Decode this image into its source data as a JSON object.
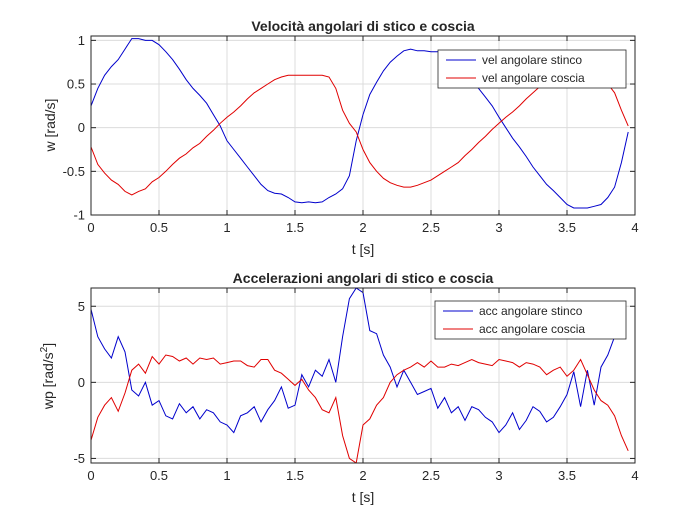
{
  "chart_data": [
    {
      "type": "line",
      "title": "Velocità angolari di stico e coscia",
      "xlabel": "t [s]",
      "ylabel": "w [rad/s]",
      "xlim": [
        0,
        4
      ],
      "ylim": [
        -1,
        1.05
      ],
      "xticks": [
        0,
        0.5,
        1,
        1.5,
        2,
        2.5,
        3,
        3.5,
        4
      ],
      "xtick_labels": [
        "0",
        "0.5",
        "1",
        "1.5",
        "2",
        "2.5",
        "3",
        "3.5",
        "4"
      ],
      "yticks": [
        -1,
        -0.5,
        0,
        0.5,
        1
      ],
      "ytick_labels": [
        "-1",
        "-0.5",
        "0",
        "0.5",
        "1"
      ],
      "grid": true,
      "legend_position": "top-right",
      "colors": {
        "stinco": "#0000cc",
        "coscia": "#e00000"
      },
      "series": [
        {
          "name": "vel angolare stinco",
          "color": "#0000cc",
          "x": [
            0,
            0.05,
            0.1,
            0.15,
            0.2,
            0.25,
            0.3,
            0.35,
            0.4,
            0.45,
            0.5,
            0.55,
            0.6,
            0.65,
            0.7,
            0.75,
            0.8,
            0.85,
            0.9,
            0.95,
            1,
            1.05,
            1.1,
            1.15,
            1.2,
            1.25,
            1.3,
            1.35,
            1.4,
            1.45,
            1.5,
            1.55,
            1.6,
            1.65,
            1.7,
            1.75,
            1.8,
            1.85,
            1.9,
            1.95,
            2,
            2.05,
            2.1,
            2.15,
            2.2,
            2.25,
            2.3,
            2.35,
            2.4,
            2.45,
            2.5,
            2.55,
            2.6,
            2.65,
            2.7,
            2.75,
            2.8,
            2.85,
            2.9,
            2.95,
            3,
            3.05,
            3.1,
            3.15,
            3.2,
            3.25,
            3.3,
            3.35,
            3.4,
            3.45,
            3.5,
            3.55,
            3.6,
            3.65,
            3.7,
            3.75,
            3.8,
            3.85,
            3.9,
            3.95
          ],
          "y": [
            0.25,
            0.45,
            0.6,
            0.7,
            0.78,
            0.9,
            1.02,
            1.02,
            1.0,
            1.0,
            0.95,
            0.87,
            0.78,
            0.67,
            0.55,
            0.45,
            0.37,
            0.28,
            0.15,
            0.02,
            -0.15,
            -0.25,
            -0.35,
            -0.45,
            -0.55,
            -0.65,
            -0.72,
            -0.75,
            -0.76,
            -0.8,
            -0.85,
            -0.86,
            -0.85,
            -0.86,
            -0.85,
            -0.8,
            -0.76,
            -0.7,
            -0.55,
            -0.15,
            0.15,
            0.38,
            0.52,
            0.65,
            0.75,
            0.82,
            0.88,
            0.9,
            0.88,
            0.88,
            0.87,
            0.87,
            0.85,
            0.8,
            0.73,
            0.65,
            0.55,
            0.45,
            0.35,
            0.25,
            0.12,
            0.0,
            -0.12,
            -0.22,
            -0.33,
            -0.45,
            -0.55,
            -0.65,
            -0.72,
            -0.8,
            -0.88,
            -0.92,
            -0.92,
            -0.92,
            -0.9,
            -0.88,
            -0.8,
            -0.68,
            -0.4,
            -0.05
          ]
        },
        {
          "name": "vel angolare coscia",
          "color": "#e00000",
          "x": [
            0,
            0.05,
            0.1,
            0.15,
            0.2,
            0.25,
            0.3,
            0.35,
            0.4,
            0.45,
            0.5,
            0.55,
            0.6,
            0.65,
            0.7,
            0.75,
            0.8,
            0.85,
            0.9,
            0.95,
            1,
            1.05,
            1.1,
            1.15,
            1.2,
            1.25,
            1.3,
            1.35,
            1.4,
            1.45,
            1.5,
            1.55,
            1.6,
            1.65,
            1.7,
            1.75,
            1.8,
            1.85,
            1.9,
            1.95,
            2,
            2.05,
            2.1,
            2.15,
            2.2,
            2.25,
            2.3,
            2.35,
            2.4,
            2.45,
            2.5,
            2.55,
            2.6,
            2.65,
            2.7,
            2.75,
            2.8,
            2.85,
            2.9,
            2.95,
            3,
            3.05,
            3.1,
            3.15,
            3.2,
            3.25,
            3.3,
            3.35,
            3.4,
            3.45,
            3.5,
            3.55,
            3.6,
            3.65,
            3.7,
            3.75,
            3.8,
            3.85,
            3.9,
            3.95
          ],
          "y": [
            -0.22,
            -0.42,
            -0.52,
            -0.6,
            -0.65,
            -0.73,
            -0.77,
            -0.73,
            -0.7,
            -0.62,
            -0.57,
            -0.5,
            -0.42,
            -0.35,
            -0.3,
            -0.23,
            -0.18,
            -0.1,
            -0.03,
            0.05,
            0.12,
            0.18,
            0.25,
            0.33,
            0.4,
            0.45,
            0.5,
            0.55,
            0.58,
            0.6,
            0.6,
            0.6,
            0.6,
            0.6,
            0.6,
            0.58,
            0.45,
            0.2,
            0.05,
            -0.05,
            -0.25,
            -0.4,
            -0.5,
            -0.58,
            -0.63,
            -0.66,
            -0.68,
            -0.68,
            -0.66,
            -0.63,
            -0.6,
            -0.55,
            -0.5,
            -0.45,
            -0.4,
            -0.32,
            -0.25,
            -0.17,
            -0.1,
            -0.02,
            0.05,
            0.12,
            0.18,
            0.25,
            0.33,
            0.4,
            0.47,
            0.52,
            0.56,
            0.58,
            0.6,
            0.6,
            0.6,
            0.6,
            0.58,
            0.56,
            0.5,
            0.4,
            0.2,
            0.02
          ]
        }
      ]
    },
    {
      "type": "line",
      "title": "Accelerazioni angolari di stico e coscia",
      "xlabel": "t [s]",
      "ylabel": "wp [rad/s",
      "ylabel_sup": "2",
      "ylabel_end": "]",
      "xlim": [
        0,
        4
      ],
      "ylim": [
        -5.3,
        6.2
      ],
      "xticks": [
        0,
        0.5,
        1,
        1.5,
        2,
        2.5,
        3,
        3.5,
        4
      ],
      "xtick_labels": [
        "0",
        "0.5",
        "1",
        "1.5",
        "2",
        "2.5",
        "3",
        "3.5",
        "4"
      ],
      "yticks": [
        -5,
        0,
        5
      ],
      "ytick_labels": [
        "-5",
        "0",
        "5"
      ],
      "grid": true,
      "legend_position": "top-right",
      "series": [
        {
          "name": "acc angolare stinco",
          "color": "#0000cc",
          "x": [
            0,
            0.05,
            0.1,
            0.15,
            0.2,
            0.25,
            0.3,
            0.35,
            0.4,
            0.45,
            0.5,
            0.55,
            0.6,
            0.65,
            0.7,
            0.75,
            0.8,
            0.85,
            0.9,
            0.95,
            1,
            1.05,
            1.1,
            1.15,
            1.2,
            1.25,
            1.3,
            1.35,
            1.4,
            1.45,
            1.5,
            1.55,
            1.6,
            1.65,
            1.7,
            1.75,
            1.8,
            1.85,
            1.9,
            1.95,
            2,
            2.05,
            2.1,
            2.15,
            2.2,
            2.25,
            2.3,
            2.35,
            2.4,
            2.45,
            2.5,
            2.55,
            2.6,
            2.65,
            2.7,
            2.75,
            2.8,
            2.85,
            2.9,
            2.95,
            3,
            3.05,
            3.1,
            3.15,
            3.2,
            3.25,
            3.3,
            3.35,
            3.4,
            3.45,
            3.5,
            3.55,
            3.6,
            3.65,
            3.7,
            3.75,
            3.8,
            3.85
          ],
          "y": [
            4.8,
            3.0,
            2.2,
            1.6,
            3.0,
            2.0,
            -0.5,
            -0.9,
            0.0,
            -1.5,
            -1.2,
            -2.2,
            -2.4,
            -1.4,
            -2.0,
            -1.6,
            -2.4,
            -1.8,
            -2.0,
            -2.6,
            -2.8,
            -3.3,
            -2.2,
            -2.0,
            -1.6,
            -2.6,
            -1.8,
            -1.2,
            -0.3,
            -1.7,
            -1.5,
            0.5,
            -0.3,
            0.8,
            0.4,
            1.5,
            0.0,
            3.0,
            5.5,
            6.2,
            5.9,
            3.4,
            3.2,
            1.8,
            1.0,
            -0.3,
            0.8,
            0.0,
            -0.8,
            -0.6,
            -0.4,
            -1.7,
            -1.0,
            -2.0,
            -1.6,
            -2.5,
            -1.6,
            -1.8,
            -2.3,
            -2.6,
            -3.3,
            -2.8,
            -2.0,
            -3.1,
            -2.5,
            -1.6,
            -1.9,
            -2.6,
            -2.3,
            -1.6,
            -0.8,
            0.7,
            -1.6,
            0.8,
            -1.5,
            1.0,
            1.8,
            3.0
          ]
        },
        {
          "name": "acc angolare coscia",
          "color": "#e00000",
          "x": [
            0,
            0.05,
            0.1,
            0.15,
            0.2,
            0.25,
            0.3,
            0.35,
            0.4,
            0.45,
            0.5,
            0.55,
            0.6,
            0.65,
            0.7,
            0.75,
            0.8,
            0.85,
            0.9,
            0.95,
            1,
            1.05,
            1.1,
            1.15,
            1.2,
            1.25,
            1.3,
            1.35,
            1.4,
            1.45,
            1.5,
            1.55,
            1.6,
            1.65,
            1.7,
            1.75,
            1.8,
            1.85,
            1.9,
            1.95,
            2,
            2.05,
            2.1,
            2.15,
            2.2,
            2.25,
            2.3,
            2.35,
            2.4,
            2.45,
            2.5,
            2.55,
            2.6,
            2.65,
            2.7,
            2.75,
            2.8,
            2.85,
            2.9,
            2.95,
            3,
            3.05,
            3.1,
            3.15,
            3.2,
            3.25,
            3.3,
            3.35,
            3.4,
            3.45,
            3.5,
            3.55,
            3.6,
            3.65,
            3.7,
            3.75,
            3.8,
            3.85,
            3.9,
            3.95
          ],
          "y": [
            -3.8,
            -2.3,
            -1.5,
            -1.0,
            -1.9,
            -0.7,
            0.8,
            1.2,
            0.6,
            1.7,
            1.2,
            1.8,
            1.7,
            1.4,
            1.6,
            1.2,
            1.6,
            1.5,
            1.6,
            1.2,
            1.3,
            1.4,
            1.4,
            1.1,
            1.0,
            1.5,
            1.5,
            0.8,
            0.6,
            0.2,
            -0.2,
            0.2,
            -0.5,
            -1.0,
            -1.8,
            -2.0,
            -1.0,
            -3.5,
            -5.0,
            -5.3,
            -2.8,
            -2.4,
            -1.5,
            -1.0,
            0.0,
            0.5,
            0.8,
            1.0,
            1.3,
            1.0,
            1.4,
            1.0,
            1.0,
            1.2,
            1.1,
            1.3,
            1.5,
            1.3,
            1.2,
            1.1,
            1.5,
            1.4,
            1.3,
            1.0,
            1.3,
            1.2,
            1.0,
            0.5,
            0.8,
            1.0,
            0.4,
            0.8,
            1.5,
            0.5,
            -0.5,
            -1.2,
            -1.5,
            -2.2,
            -3.5,
            -4.5
          ]
        }
      ]
    }
  ]
}
